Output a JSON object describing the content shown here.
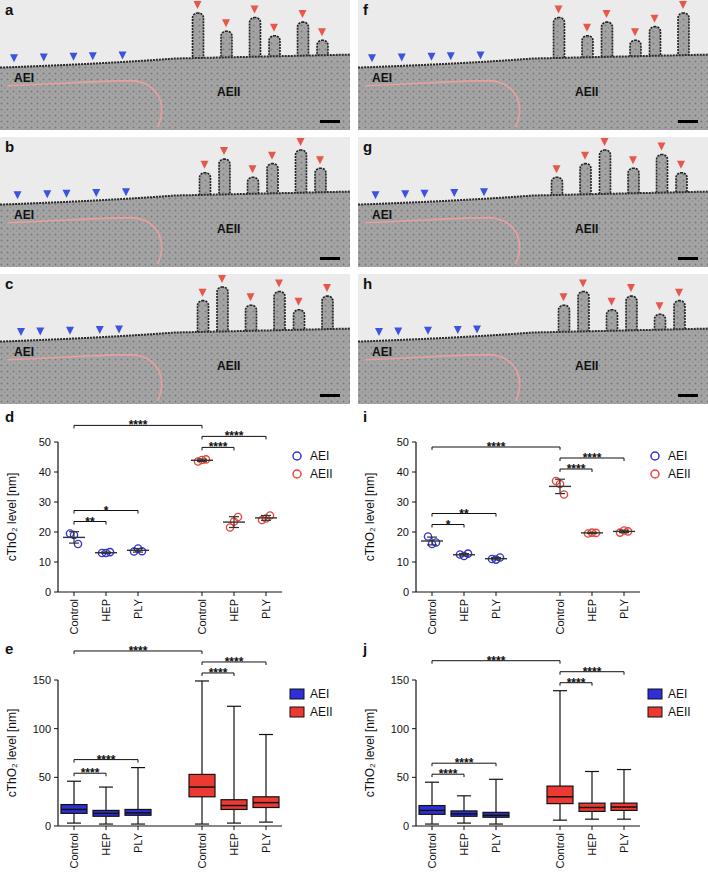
{
  "micrographs": [
    {
      "title": "a",
      "labels": [
        "AEI",
        "AEII"
      ]
    },
    {
      "title": "b",
      "labels": [
        "AEI",
        "AEII"
      ]
    },
    {
      "title": "c",
      "labels": [
        "AEI",
        "AEII"
      ]
    },
    {
      "title": "f",
      "labels": [
        "AEI",
        "AEII"
      ]
    },
    {
      "title": "g",
      "labels": [
        "AEI",
        "AEII"
      ]
    },
    {
      "title": "h",
      "labels": [
        "AEI",
        "AEII"
      ]
    }
  ],
  "chart_data": [
    {
      "type": "scatter",
      "title": "d",
      "y_label": "cThO₂ level [nm]",
      "categories": [
        "Control",
        "HEP",
        "PLY",
        "Control",
        "HEP",
        "PLY"
      ],
      "series": [
        {
          "name": "AEI",
          "color": "#3434d6",
          "marker": "circle",
          "points": [
            [
              19.5,
              19,
              16
            ],
            [
              13,
              13,
              13.3
            ],
            [
              13.5,
              14.5,
              13.6
            ],
            null,
            null,
            null
          ],
          "values": [
            18.2,
            13.1,
            13.9,
            null,
            null,
            null
          ],
          "errors": [
            1.9,
            0.2,
            0.6,
            null,
            null,
            null
          ]
        },
        {
          "name": "AEII",
          "color": "#e8463c",
          "marker": "circle",
          "points": [
            null,
            null,
            null,
            [
              43.5,
              44,
              44.2
            ],
            [
              21.5,
              23.5,
              25
            ],
            [
              24,
              24.5,
              25.5
            ]
          ],
          "values": [
            null,
            null,
            null,
            43.9,
            23.3,
            24.7
          ],
          "errors": [
            null,
            null,
            null,
            0.4,
            1.8,
            0.8
          ]
        }
      ],
      "ylim": [
        0,
        50
      ],
      "yticks": [
        0,
        10,
        20,
        30,
        40,
        50
      ],
      "grid": false,
      "legend": "top-right",
      "comparisons": [
        {
          "from": 0,
          "to": 1,
          "label": "**"
        },
        {
          "from": 0,
          "to": 2,
          "label": "*"
        },
        {
          "from": 0,
          "to": 3,
          "label": "****"
        },
        {
          "from": 3,
          "to": 4,
          "label": "****"
        },
        {
          "from": 3,
          "to": 5,
          "label": "****"
        }
      ]
    },
    {
      "type": "box",
      "title": "e",
      "y_label": "cThO₂ level [nm]",
      "categories": [
        "Control",
        "HEP",
        "PLY",
        "Control",
        "HEP",
        "PLY"
      ],
      "series": [
        {
          "name": "AEI",
          "color": "#2f2fd8",
          "min": [
            3,
            2,
            2,
            null,
            null,
            null
          ],
          "q1": [
            13,
            10,
            11,
            null,
            null,
            null
          ],
          "median": [
            17,
            13,
            13.5,
            null,
            null,
            null
          ],
          "q3": [
            22,
            16,
            17,
            null,
            null,
            null
          ],
          "max": [
            46,
            40,
            60,
            null,
            null,
            null
          ]
        },
        {
          "name": "AEII",
          "color": "#ec3a33",
          "min": [
            null,
            null,
            null,
            2,
            3,
            4
          ],
          "q1": [
            null,
            null,
            null,
            30,
            17,
            19
          ],
          "median": [
            null,
            null,
            null,
            40,
            21,
            24
          ],
          "q3": [
            null,
            null,
            null,
            53,
            27,
            30
          ],
          "max": [
            null,
            null,
            null,
            149,
            123,
            94
          ]
        }
      ],
      "ylim": [
        0,
        150
      ],
      "yticks": [
        0,
        50,
        100,
        150
      ],
      "grid": false,
      "legend": "top-right",
      "comparisons": [
        {
          "from": 0,
          "to": 1,
          "label": "****"
        },
        {
          "from": 0,
          "to": 2,
          "label": "****"
        },
        {
          "from": 0,
          "to": 3,
          "label": "****"
        },
        {
          "from": 3,
          "to": 4,
          "label": "****"
        },
        {
          "from": 3,
          "to": 5,
          "label": "****"
        }
      ]
    },
    {
      "type": "scatter",
      "title": "i",
      "y_label": "cThO₂ level [nm]",
      "categories": [
        "Control",
        "HEP",
        "PLY",
        "Control",
        "HEP",
        "PLY"
      ],
      "series": [
        {
          "name": "AEI",
          "color": "#3434d6",
          "marker": "circle",
          "points": [
            [
              18.5,
              16,
              16.5
            ],
            [
              12.5,
              12,
              12.8
            ],
            [
              11,
              10.8,
              11.5
            ],
            null,
            null,
            null
          ],
          "values": [
            17,
            12.4,
            11.1,
            null,
            null,
            null
          ],
          "errors": [
            1.3,
            0.4,
            0.4,
            null,
            null,
            null
          ]
        },
        {
          "name": "AEII",
          "color": "#e8463c",
          "marker": "circle",
          "points": [
            null,
            null,
            null,
            [
              37,
              36,
              32.5
            ],
            [
              19.5,
              19.8,
              19.7
            ],
            [
              19.8,
              20.5,
              20.2
            ]
          ],
          "values": [
            null,
            null,
            null,
            35.2,
            19.7,
            20.2
          ],
          "errors": [
            null,
            null,
            null,
            2.4,
            0.2,
            0.4
          ]
        }
      ],
      "ylim": [
        0,
        50
      ],
      "yticks": [
        0,
        10,
        20,
        30,
        40,
        50
      ],
      "grid": false,
      "legend": "top-right",
      "comparisons": [
        {
          "from": 0,
          "to": 1,
          "label": "*"
        },
        {
          "from": 0,
          "to": 2,
          "label": "**"
        },
        {
          "from": 0,
          "to": 3,
          "label": "****"
        },
        {
          "from": 3,
          "to": 4,
          "label": "****"
        },
        {
          "from": 3,
          "to": 5,
          "label": "****"
        }
      ]
    },
    {
      "type": "box",
      "title": "j",
      "y_label": "cThO₂ level [nm]",
      "categories": [
        "Control",
        "HEP",
        "PLY",
        "Control",
        "HEP",
        "PLY"
      ],
      "series": [
        {
          "name": "AEI",
          "color": "#2f2fd8",
          "min": [
            2,
            3,
            2,
            null,
            null,
            null
          ],
          "q1": [
            12,
            10,
            9,
            null,
            null,
            null
          ],
          "median": [
            16,
            12.5,
            11,
            null,
            null,
            null
          ],
          "q3": [
            21,
            15.5,
            14,
            null,
            null,
            null
          ],
          "max": [
            45,
            31,
            48,
            null,
            null,
            null
          ]
        },
        {
          "name": "AEII",
          "color": "#ec3a33",
          "min": [
            null,
            null,
            null,
            6,
            7,
            7
          ],
          "q1": [
            null,
            null,
            null,
            23,
            15,
            16
          ],
          "median": [
            null,
            null,
            null,
            30,
            19,
            19.5
          ],
          "q3": [
            null,
            null,
            null,
            41,
            23.5,
            23.5
          ],
          "max": [
            null,
            null,
            null,
            139,
            56,
            58
          ]
        }
      ],
      "ylim": [
        0,
        150
      ],
      "yticks": [
        0,
        50,
        100,
        150
      ],
      "grid": false,
      "legend": "top-right",
      "comparisons": [
        {
          "from": 0,
          "to": 1,
          "label": "****"
        },
        {
          "from": 0,
          "to": 2,
          "label": "****"
        },
        {
          "from": 0,
          "to": 3,
          "label": "****"
        },
        {
          "from": 3,
          "to": 4,
          "label": "****"
        },
        {
          "from": 3,
          "to": 5,
          "label": "****"
        }
      ]
    }
  ]
}
